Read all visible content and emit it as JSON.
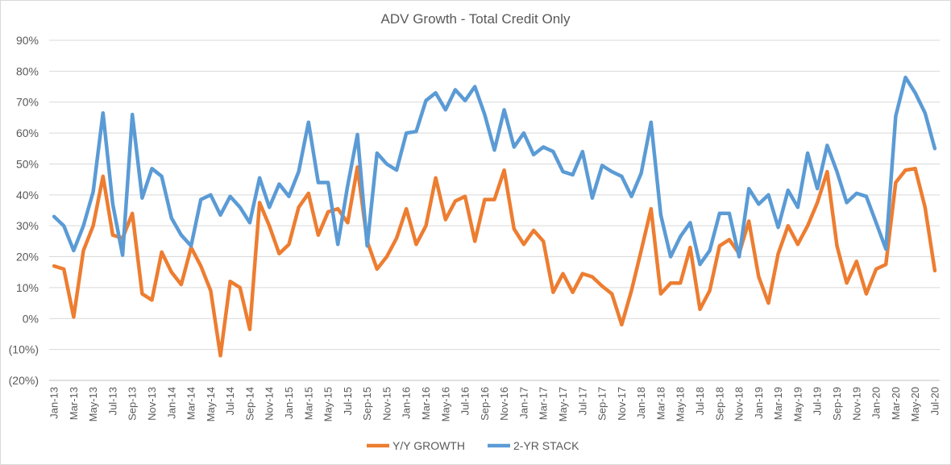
{
  "chart_data": {
    "type": "line",
    "title": "ADV Growth - Total Credit Only",
    "xlabel": "",
    "ylabel": "",
    "ylim": [
      -0.2,
      0.9
    ],
    "grid": true,
    "legend_position": "bottom",
    "y_ticks": [
      "(20%)",
      "(10%)",
      "0%",
      "10%",
      "20%",
      "30%",
      "40%",
      "50%",
      "60%",
      "70%",
      "80%",
      "90%"
    ],
    "y_tick_values": [
      -0.2,
      -0.1,
      0,
      0.1,
      0.2,
      0.3,
      0.4,
      0.5,
      0.6,
      0.7,
      0.8,
      0.9
    ],
    "x": [
      "Jan-13",
      "Feb-13",
      "Mar-13",
      "Apr-13",
      "May-13",
      "Jun-13",
      "Jul-13",
      "Aug-13",
      "Sep-13",
      "Oct-13",
      "Nov-13",
      "Dec-13",
      "Jan-14",
      "Feb-14",
      "Mar-14",
      "Apr-14",
      "May-14",
      "Jun-14",
      "Jul-14",
      "Aug-14",
      "Sep-14",
      "Oct-14",
      "Nov-14",
      "Dec-14",
      "Jan-15",
      "Feb-15",
      "Mar-15",
      "Apr-15",
      "May-15",
      "Jun-15",
      "Jul-15",
      "Aug-15",
      "Sep-15",
      "Oct-15",
      "Nov-15",
      "Dec-15",
      "Jan-16",
      "Feb-16",
      "Mar-16",
      "Apr-16",
      "May-16",
      "Jun-16",
      "Jul-16",
      "Aug-16",
      "Sep-16",
      "Oct-16",
      "Nov-16",
      "Dec-16",
      "Jan-17",
      "Feb-17",
      "Mar-17",
      "Apr-17",
      "May-17",
      "Jun-17",
      "Jul-17",
      "Aug-17",
      "Sep-17",
      "Oct-17",
      "Nov-17",
      "Dec-17",
      "Jan-18",
      "Feb-18",
      "Mar-18",
      "Apr-18",
      "May-18",
      "Jun-18",
      "Jul-18",
      "Aug-18",
      "Sep-18",
      "Oct-18",
      "Nov-18",
      "Dec-18",
      "Jan-19",
      "Feb-19",
      "Mar-19",
      "Apr-19",
      "May-19",
      "Jun-19",
      "Jul-19",
      "Aug-19",
      "Sep-19",
      "Oct-19",
      "Nov-19",
      "Dec-19",
      "Jan-20",
      "Feb-20",
      "Mar-20",
      "Apr-20",
      "May-20",
      "Jun-20",
      "Jul-20"
    ],
    "x_tick_labels": [
      "Jan-13",
      "Mar-13",
      "May-13",
      "Jul-13",
      "Sep-13",
      "Nov-13",
      "Jan-14",
      "Mar-14",
      "May-14",
      "Jul-14",
      "Sep-14",
      "Nov-14",
      "Jan-15",
      "Mar-15",
      "May-15",
      "Jul-15",
      "Sep-15",
      "Nov-15",
      "Jan-16",
      "Mar-16",
      "May-16",
      "Jul-16",
      "Sep-16",
      "Nov-16",
      "Jan-17",
      "Mar-17",
      "May-17",
      "Jul-17",
      "Sep-17",
      "Nov-17",
      "Jan-18",
      "Mar-18",
      "May-18",
      "Jul-18",
      "Sep-18",
      "Nov-18",
      "Jan-19",
      "Mar-19",
      "May-19",
      "Jul-19",
      "Sep-19",
      "Nov-19",
      "Jan-20",
      "Mar-20",
      "May-20",
      "Jul-20"
    ],
    "series": [
      {
        "name": "Y/Y GROWTH",
        "color": "#ed7d31",
        "values": [
          0.17,
          0.16,
          0.005,
          0.22,
          0.3,
          0.46,
          0.27,
          0.26,
          0.34,
          0.08,
          0.06,
          0.215,
          0.15,
          0.11,
          0.23,
          0.17,
          0.09,
          -0.12,
          0.12,
          0.1,
          -0.035,
          0.375,
          0.3,
          0.21,
          0.24,
          0.36,
          0.405,
          0.27,
          0.345,
          0.355,
          0.31,
          0.49,
          0.25,
          0.16,
          0.2,
          0.26,
          0.355,
          0.24,
          0.3,
          0.455,
          0.32,
          0.38,
          0.395,
          0.25,
          0.385,
          0.385,
          0.48,
          0.29,
          0.24,
          0.285,
          0.25,
          0.085,
          0.145,
          0.085,
          0.145,
          0.135,
          0.105,
          0.08,
          -0.02,
          0.09,
          0.22,
          0.355,
          0.08,
          0.115,
          0.115,
          0.23,
          0.03,
          0.09,
          0.235,
          0.255,
          0.21,
          0.315,
          0.135,
          0.05,
          0.21,
          0.3,
          0.24,
          0.3,
          0.375,
          0.475,
          0.235,
          0.115,
          0.185,
          0.08,
          0.16,
          0.175,
          0.44,
          0.48,
          0.485,
          0.36,
          0.155
        ]
      },
      {
        "name": "2-YR STACK",
        "color": "#5b9bd5",
        "values": [
          0.33,
          0.3,
          0.22,
          0.3,
          0.41,
          0.665,
          0.37,
          0.205,
          0.66,
          0.39,
          0.485,
          0.46,
          0.325,
          0.27,
          0.235,
          0.385,
          0.4,
          0.335,
          0.395,
          0.36,
          0.31,
          0.455,
          0.36,
          0.435,
          0.395,
          0.475,
          0.635,
          0.44,
          0.44,
          0.24,
          0.43,
          0.595,
          0.235,
          0.535,
          0.5,
          0.48,
          0.6,
          0.605,
          0.705,
          0.73,
          0.675,
          0.74,
          0.705,
          0.75,
          0.66,
          0.545,
          0.675,
          0.555,
          0.6,
          0.53,
          0.555,
          0.54,
          0.475,
          0.465,
          0.54,
          0.39,
          0.495,
          0.475,
          0.46,
          0.395,
          0.47,
          0.635,
          0.335,
          0.2,
          0.265,
          0.31,
          0.175,
          0.22,
          0.34,
          0.34,
          0.2,
          0.42,
          0.37,
          0.4,
          0.295,
          0.415,
          0.36,
          0.535,
          0.42,
          0.56,
          0.475,
          0.375,
          0.405,
          0.395,
          0.31,
          0.225,
          0.655,
          0.78,
          0.73,
          0.665,
          0.55
        ]
      }
    ]
  }
}
